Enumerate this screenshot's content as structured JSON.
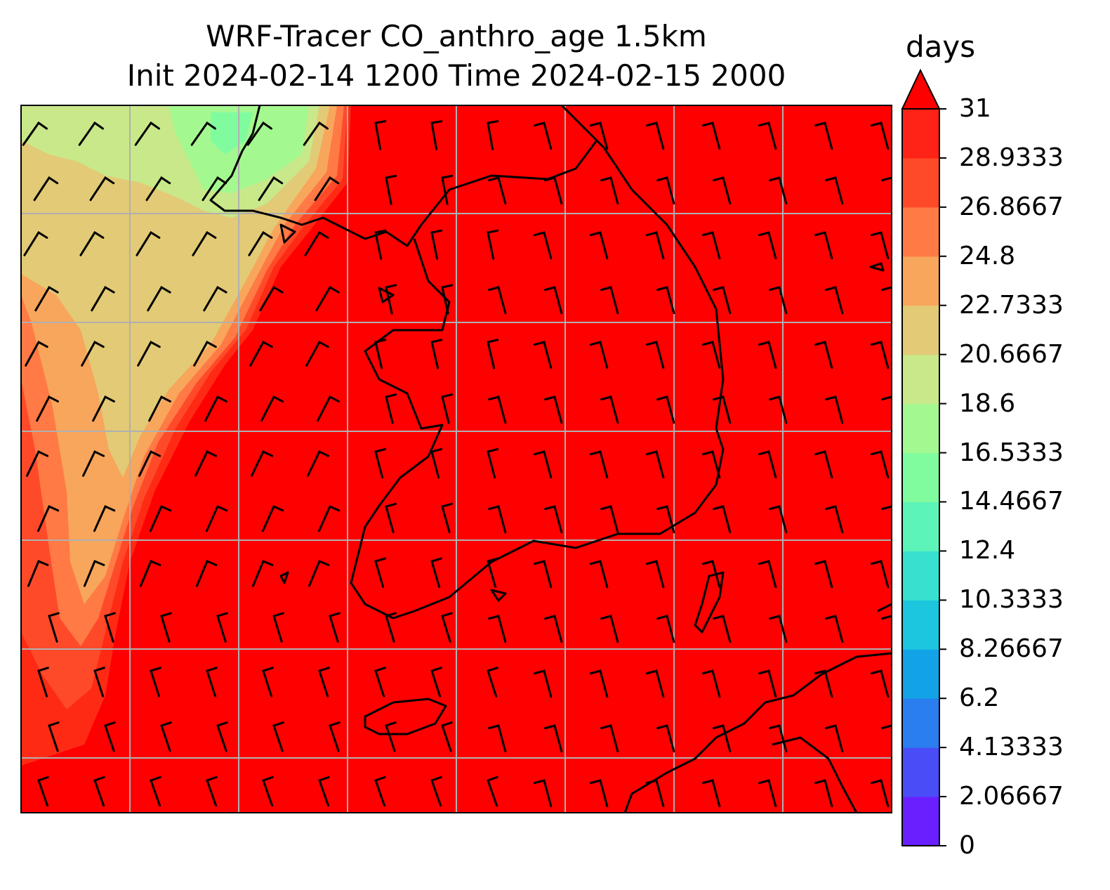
{
  "title": {
    "line1": "WRF-Tracer CO_anthro_age 1.5km",
    "line2": "Init 2024-02-14 1200 Time 2024-02-15 2000"
  },
  "colorbar": {
    "units": "days",
    "extend": "max",
    "min": 0,
    "max": 31,
    "tick_labels": [
      "31",
      "28.9333",
      "26.8667",
      "24.8",
      "22.7333",
      "20.6667",
      "18.6",
      "16.5333",
      "14.4667",
      "12.4",
      "10.3333",
      "8.26667",
      "6.2",
      "4.13333",
      "2.06667",
      "0"
    ],
    "level_colors_low_to_high": [
      "#6a1fff",
      "#4a4cf7",
      "#2a7ef0",
      "#12a3e7",
      "#1cc6df",
      "#38e0cf",
      "#5cf4b8",
      "#80fc9e",
      "#a4f890",
      "#c8e88a",
      "#e2ca76",
      "#f7a65c",
      "#ff7a44",
      "#ff4a2a",
      "#ff2216"
    ],
    "extend_color": "#ff0000"
  },
  "map": {
    "projection_gridlines": true,
    "field": "CO_anthro_age",
    "overlay": "wind barbs",
    "coastlines": true,
    "dominant_value_color": "#ff0000"
  }
}
